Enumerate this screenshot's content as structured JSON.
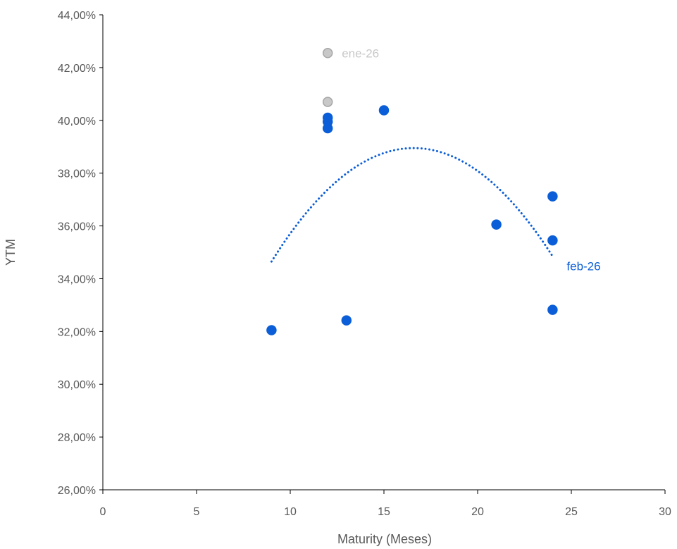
{
  "chart_data": {
    "type": "scatter",
    "xlabel": "Maturity (Meses)",
    "ylabel": "YTM",
    "xlim": [
      0,
      30
    ],
    "ylim": [
      26,
      44
    ],
    "x_ticks": [
      0,
      5,
      10,
      15,
      20,
      25,
      30
    ],
    "y_ticks": [
      26,
      28,
      30,
      32,
      34,
      36,
      38,
      40,
      42,
      44
    ],
    "x_tick_labels": [
      "0",
      "5",
      "10",
      "15",
      "20",
      "25",
      "30"
    ],
    "y_tick_labels": [
      "26,00%",
      "28,00%",
      "30,00%",
      "32,00%",
      "34,00%",
      "36,00%",
      "38,00%",
      "40,00%",
      "42,00%",
      "44,00%"
    ],
    "grid": false,
    "series": [
      {
        "name": "ene-26",
        "color": "#c8c8c8",
        "points": [
          {
            "x": 12,
            "y": 42.55
          },
          {
            "x": 12,
            "y": 40.7
          }
        ]
      },
      {
        "name": "feb-26",
        "color": "#0b5ed7",
        "points": [
          {
            "x": 9,
            "y": 32.05
          },
          {
            "x": 12,
            "y": 40.1
          },
          {
            "x": 12,
            "y": 39.95
          },
          {
            "x": 12,
            "y": 39.7
          },
          {
            "x": 13,
            "y": 32.42
          },
          {
            "x": 15,
            "y": 40.38
          },
          {
            "x": 21,
            "y": 36.05
          },
          {
            "x": 24,
            "y": 37.12
          },
          {
            "x": 24,
            "y": 35.45
          },
          {
            "x": 24,
            "y": 32.82
          }
        ],
        "trendline": {
          "type": "polynomial-2",
          "color": "#0b5ed7",
          "x_range": [
            9,
            24
          ],
          "points": [
            {
              "x": 9,
              "y": 34.65
            },
            {
              "x": 16.65,
              "y": 38.95
            },
            {
              "x": 24,
              "y": 34.85
            }
          ]
        }
      }
    ]
  }
}
